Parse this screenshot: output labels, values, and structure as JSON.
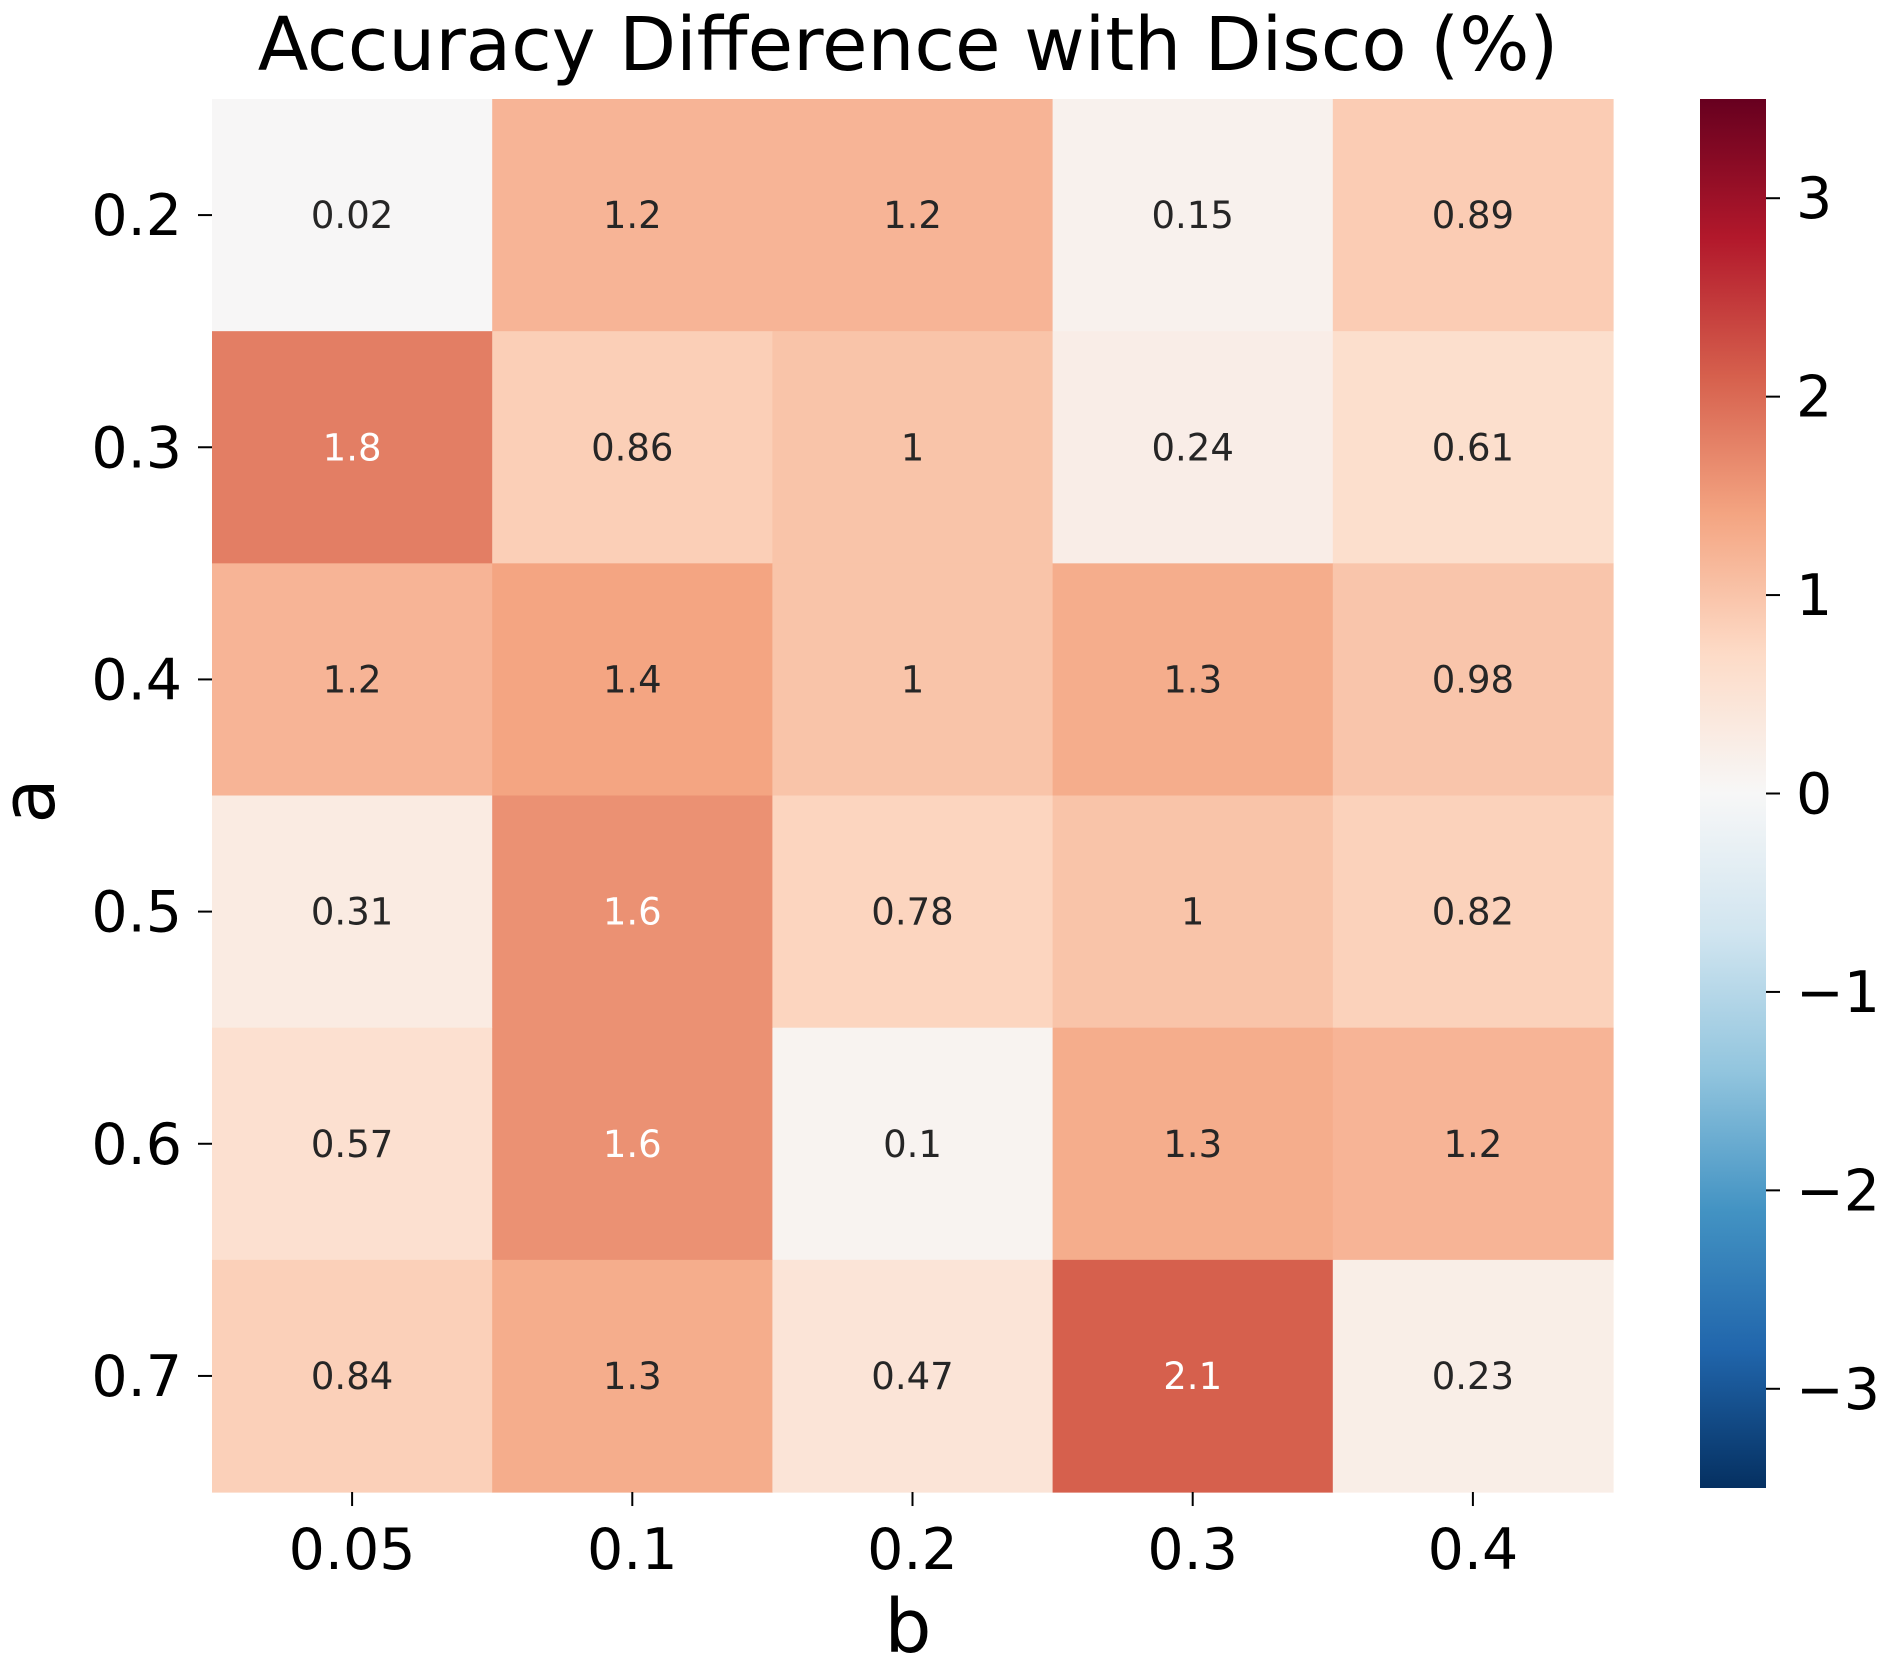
{
  "chart_data": {
    "type": "heatmap",
    "title": "Accuracy Difference with Disco (%)",
    "xlabel": "b",
    "ylabel": "a",
    "x_categories": [
      "0.05",
      "0.1",
      "0.2",
      "0.3",
      "0.4"
    ],
    "y_categories": [
      "0.2",
      "0.3",
      "0.4",
      "0.5",
      "0.6",
      "0.7"
    ],
    "values": [
      [
        0.02,
        1.2,
        1.2,
        0.15,
        0.89
      ],
      [
        1.8,
        0.86,
        1.0,
        0.24,
        0.61
      ],
      [
        1.2,
        1.4,
        1.0,
        1.3,
        0.98
      ],
      [
        0.31,
        1.6,
        0.78,
        1.0,
        0.82
      ],
      [
        0.57,
        1.6,
        0.1,
        1.3,
        1.2
      ],
      [
        0.84,
        1.3,
        0.47,
        2.1,
        0.23
      ]
    ],
    "cell_labels": [
      [
        "0.02",
        "1.2",
        "1.2",
        "0.15",
        "0.89"
      ],
      [
        "1.8",
        "0.86",
        "1",
        "0.24",
        "0.61"
      ],
      [
        "1.2",
        "1.4",
        "1",
        "1.3",
        "0.98"
      ],
      [
        "0.31",
        "1.6",
        "0.78",
        "1",
        "0.82"
      ],
      [
        "0.57",
        "1.6",
        "0.1",
        "1.3",
        "1.2"
      ],
      [
        "0.84",
        "1.3",
        "0.47",
        "2.1",
        "0.23"
      ]
    ],
    "colormap": "RdBu_r",
    "color_range": [
      -3.5,
      3.5
    ],
    "colorbar_ticks": [
      3,
      2,
      1,
      0,
      -1,
      -2,
      -3
    ],
    "colorbar_tick_labels": [
      "3",
      "2",
      "1",
      "0",
      "−1",
      "−2",
      "−3"
    ],
    "colormap_stops": [
      "#053061",
      "#2166ac",
      "#4393c3",
      "#92c5de",
      "#d1e5f0",
      "#f7f7f7",
      "#fddbc7",
      "#f4a582",
      "#d6604d",
      "#b2182b",
      "#67001f"
    ],
    "annotation_colors": {
      "dark": "#262626",
      "light": "#ffffff"
    }
  }
}
